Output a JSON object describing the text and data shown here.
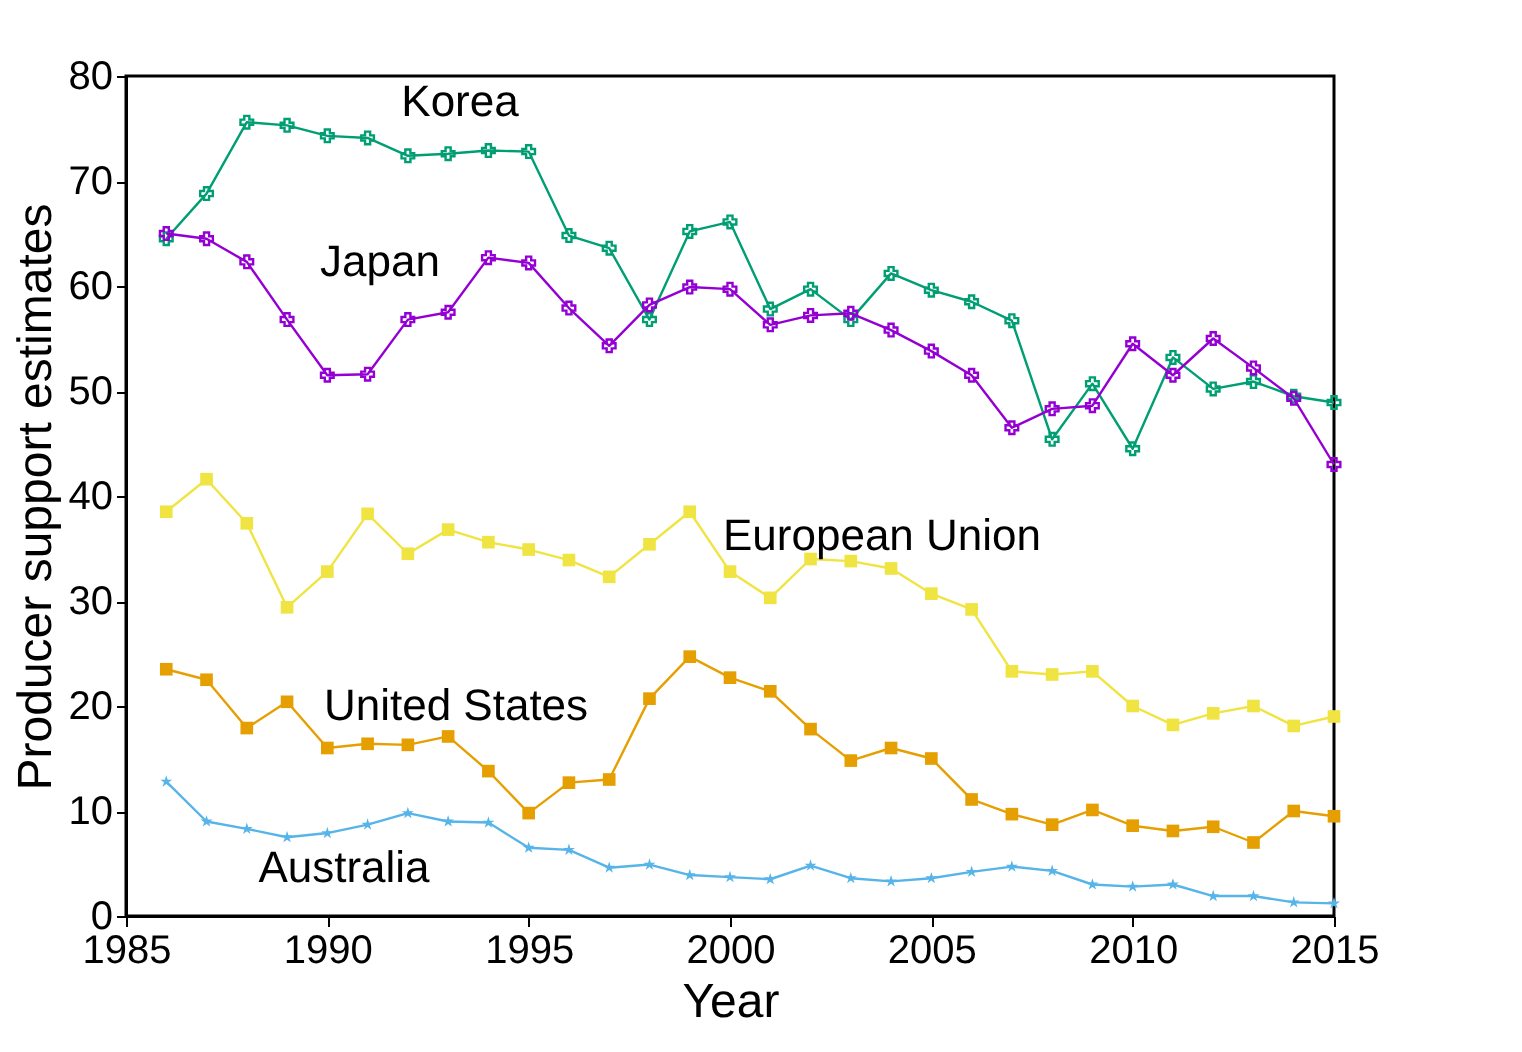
{
  "chart_data": {
    "type": "line",
    "xlabel": "Year",
    "ylabel": "Producer support estimates",
    "x": [
      1986,
      1987,
      1988,
      1989,
      1990,
      1991,
      1992,
      1993,
      1994,
      1995,
      1996,
      1997,
      1998,
      1999,
      2000,
      2001,
      2002,
      2003,
      2004,
      2005,
      2006,
      2007,
      2008,
      2009,
      2010,
      2011,
      2012,
      2013,
      2014,
      2015
    ],
    "series": [
      {
        "name": "Korea",
        "color": "#009e73",
        "marker": "cross",
        "values": [
          64.5,
          68.8,
          75.6,
          75.3,
          74.3,
          74.1,
          72.4,
          72.6,
          72.9,
          72.8,
          64.8,
          63.6,
          56.8,
          65.2,
          66.1,
          57.8,
          59.7,
          56.8,
          61.2,
          59.6,
          58.5,
          56.7,
          45.4,
          50.7,
          44.5,
          53.2,
          50.2,
          50.9,
          49.5,
          48.9
        ]
      },
      {
        "name": "Japan",
        "color": "#9400d3",
        "marker": "cross",
        "values": [
          65.0,
          64.5,
          62.3,
          56.8,
          51.5,
          51.6,
          56.8,
          57.5,
          62.7,
          62.2,
          57.9,
          54.3,
          58.2,
          59.9,
          59.7,
          56.3,
          57.2,
          57.4,
          55.8,
          53.8,
          51.5,
          46.5,
          48.3,
          48.6,
          54.5,
          51.5,
          55.0,
          52.2,
          49.3,
          43.0
        ]
      },
      {
        "name": "European Union",
        "color": "#f0e442",
        "marker": "square",
        "values": [
          38.5,
          41.6,
          37.4,
          29.4,
          32.8,
          38.3,
          34.5,
          36.8,
          35.6,
          34.9,
          33.9,
          32.3,
          35.4,
          38.5,
          32.8,
          30.3,
          34.0,
          33.8,
          33.1,
          30.7,
          29.2,
          23.3,
          23.0,
          23.3,
          20.0,
          18.2,
          19.3,
          20.0,
          18.1,
          19.0
        ]
      },
      {
        "name": "United States",
        "color": "#e69f00",
        "marker": "square",
        "values": [
          23.5,
          22.5,
          17.9,
          20.4,
          16.0,
          16.4,
          16.3,
          17.1,
          13.8,
          9.8,
          12.7,
          13.0,
          20.7,
          24.7,
          22.7,
          21.4,
          17.8,
          14.8,
          16.0,
          15.0,
          11.1,
          9.7,
          8.7,
          10.1,
          8.6,
          8.1,
          8.5,
          7.0,
          10.0,
          9.5
        ]
      },
      {
        "name": "Australia",
        "color": "#56b4e9",
        "marker": "star",
        "values": [
          12.8,
          9.0,
          8.3,
          7.5,
          7.9,
          8.7,
          9.8,
          9.0,
          8.9,
          6.5,
          6.3,
          4.6,
          4.9,
          3.9,
          3.7,
          3.5,
          4.8,
          3.6,
          3.3,
          3.6,
          4.2,
          4.7,
          4.3,
          3.0,
          2.8,
          3.0,
          1.9,
          1.9,
          1.3,
          1.2
        ]
      }
    ],
    "xlim": [
      1985,
      2015
    ],
    "xticks": [
      1985,
      1990,
      1995,
      2000,
      2005,
      2010,
      2015
    ],
    "ylim": [
      0,
      80
    ],
    "yticks": [
      0,
      10,
      20,
      30,
      40,
      50,
      60,
      70,
      80
    ],
    "grid": false
  }
}
